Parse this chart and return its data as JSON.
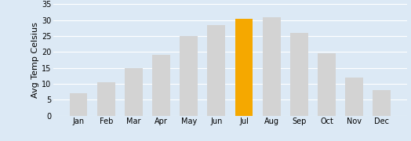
{
  "months": [
    "Jan",
    "Feb",
    "Mar",
    "Apr",
    "May",
    "Jun",
    "Jul",
    "Aug",
    "Sep",
    "Oct",
    "Nov",
    "Dec"
  ],
  "values": [
    7,
    10.5,
    15,
    19,
    25,
    28.5,
    30.3,
    30.8,
    26,
    19.5,
    12,
    8
  ],
  "bar_colors": [
    "#d3d3d3",
    "#d3d3d3",
    "#d3d3d3",
    "#d3d3d3",
    "#d3d3d3",
    "#d3d3d3",
    "#f5a800",
    "#d3d3d3",
    "#d3d3d3",
    "#d3d3d3",
    "#d3d3d3",
    "#d3d3d3"
  ],
  "ylabel": "Avg Temp Celsius",
  "ylim": [
    0,
    35
  ],
  "yticks": [
    0,
    5,
    10,
    15,
    20,
    25,
    30,
    35
  ],
  "background_color": "#dce9f5",
  "plot_bg_color": "#dce9f5",
  "grid_color": "#ffffff",
  "tick_fontsize": 7,
  "ylabel_fontsize": 8
}
